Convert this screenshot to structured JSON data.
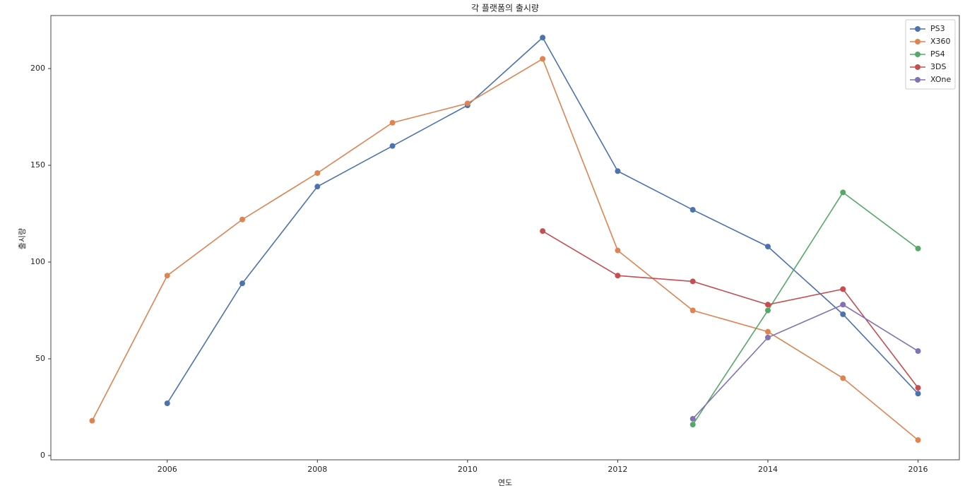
{
  "chart_data": {
    "type": "line",
    "title": "각 플랫폼의 출시량",
    "x_label": "연도",
    "y_label": "출시량",
    "x": [
      2005,
      2006,
      2007,
      2008,
      2009,
      2010,
      2011,
      2012,
      2013,
      2014,
      2015,
      2016
    ],
    "series": [
      {
        "name": "PS3",
        "color": "#4c72b0",
        "values": [
          null,
          27,
          89,
          139,
          160,
          181,
          216,
          147,
          127,
          108,
          73,
          32
        ]
      },
      {
        "name": "X360",
        "color": "#dd8452",
        "values": [
          18,
          93,
          122,
          146,
          172,
          182,
          205,
          106,
          75,
          64,
          40,
          8
        ]
      },
      {
        "name": "PS4",
        "color": "#55a868",
        "values": [
          null,
          null,
          null,
          null,
          null,
          null,
          null,
          null,
          16,
          75,
          136,
          107
        ]
      },
      {
        "name": "3DS",
        "color": "#c44e52",
        "values": [
          null,
          null,
          null,
          null,
          null,
          null,
          116,
          93,
          90,
          78,
          86,
          35
        ]
      },
      {
        "name": "XOne",
        "color": "#8172b3",
        "values": [
          null,
          null,
          null,
          null,
          null,
          null,
          null,
          null,
          19,
          61,
          78,
          54
        ]
      }
    ],
    "xlim": [
      2004.45,
      2016.55
    ],
    "ylim": [
      -2.2,
      227.4
    ],
    "xticks": [
      2006,
      2008,
      2010,
      2012,
      2014,
      2016
    ],
    "yticks": [
      0,
      50,
      100,
      150,
      200
    ],
    "grid": false,
    "legend": "upper right"
  }
}
